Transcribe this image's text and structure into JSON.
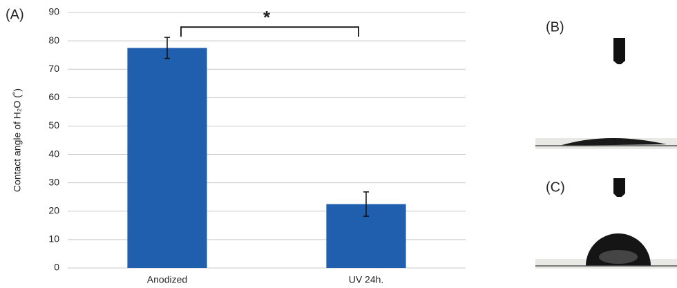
{
  "chart_data": {
    "type": "bar",
    "panel_labels": [
      "(A)",
      "(B)",
      "(C)"
    ],
    "y_label": "Contact angle of H₂O (˚)",
    "categories": [
      "Anodized",
      "UV 24h."
    ],
    "values": [
      77.5,
      22.5
    ],
    "errors": [
      3.7,
      4.3
    ],
    "annotation": "*",
    "color": "#1f5fad",
    "ylim": [
      0,
      90
    ],
    "yticks": [
      0,
      10,
      20,
      30,
      40,
      50,
      60,
      70,
      80,
      90
    ],
    "grid": true
  }
}
